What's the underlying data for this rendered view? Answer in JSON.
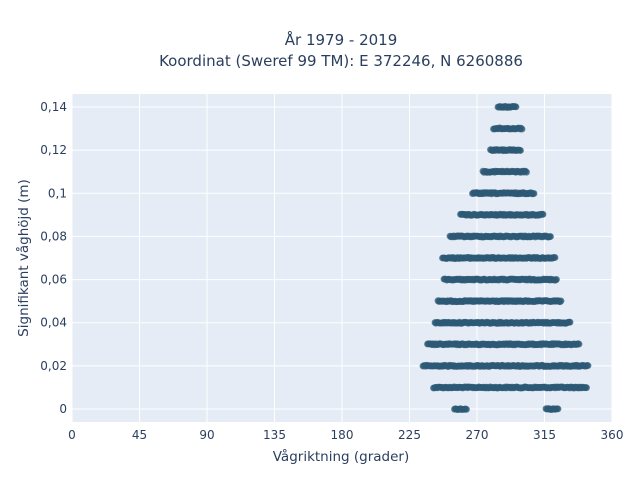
{
  "chart_data": {
    "type": "scatter",
    "title_line1": "År 1979 - 2019",
    "title_line2": "Koordinat (Sweref 99 TM): E 372246, N 6260886",
    "xlabel": "Vågriktning (grader)",
    "ylabel": "Signifikant våghöjd (m)",
    "xlim": [
      0,
      360
    ],
    "ylim": [
      -0.006,
      0.146
    ],
    "x_ticks": [
      0,
      45,
      90,
      135,
      180,
      225,
      270,
      315,
      360
    ],
    "x_tick_labels": [
      "0",
      "45",
      "90",
      "135",
      "180",
      "225",
      "270",
      "315",
      "360"
    ],
    "y_ticks": [
      0,
      0.02,
      0.04,
      0.06,
      0.08,
      0.1,
      0.12,
      0.14
    ],
    "y_tick_labels": [
      "0",
      "0,02",
      "0,04",
      "0,06",
      "0,08",
      "0,1",
      "0,12",
      "0,14"
    ],
    "grid": true,
    "legend": "none",
    "colors": {
      "background": "#e5ecf6",
      "grid": "#ffffff",
      "marker": "#2e5a75"
    },
    "bands": [
      {
        "y": 0.0,
        "x_ranges": [
          [
            255,
            263
          ],
          [
            316,
            324
          ]
        ]
      },
      {
        "y": 0.01,
        "x_ranges": [
          [
            241,
            343
          ]
        ]
      },
      {
        "y": 0.02,
        "x_ranges": [
          [
            234,
            344
          ]
        ]
      },
      {
        "y": 0.03,
        "x_ranges": [
          [
            237,
            338
          ]
        ]
      },
      {
        "y": 0.04,
        "x_ranges": [
          [
            242,
            332
          ]
        ]
      },
      {
        "y": 0.05,
        "x_ranges": [
          [
            244,
            326
          ]
        ]
      },
      {
        "y": 0.06,
        "x_ranges": [
          [
            248,
            323
          ]
        ]
      },
      {
        "y": 0.07,
        "x_ranges": [
          [
            247,
            322
          ]
        ]
      },
      {
        "y": 0.08,
        "x_ranges": [
          [
            252,
            319
          ]
        ]
      },
      {
        "y": 0.09,
        "x_ranges": [
          [
            259,
            314
          ]
        ]
      },
      {
        "y": 0.1,
        "x_ranges": [
          [
            267,
            308
          ]
        ]
      },
      {
        "y": 0.11,
        "x_ranges": [
          [
            274,
            303
          ]
        ]
      },
      {
        "y": 0.12,
        "x_ranges": [
          [
            279,
            299
          ]
        ]
      },
      {
        "y": 0.13,
        "x_ranges": [
          [
            281,
            300
          ]
        ]
      },
      {
        "y": 0.14,
        "x_ranges": [
          [
            284,
            296
          ]
        ]
      }
    ]
  }
}
